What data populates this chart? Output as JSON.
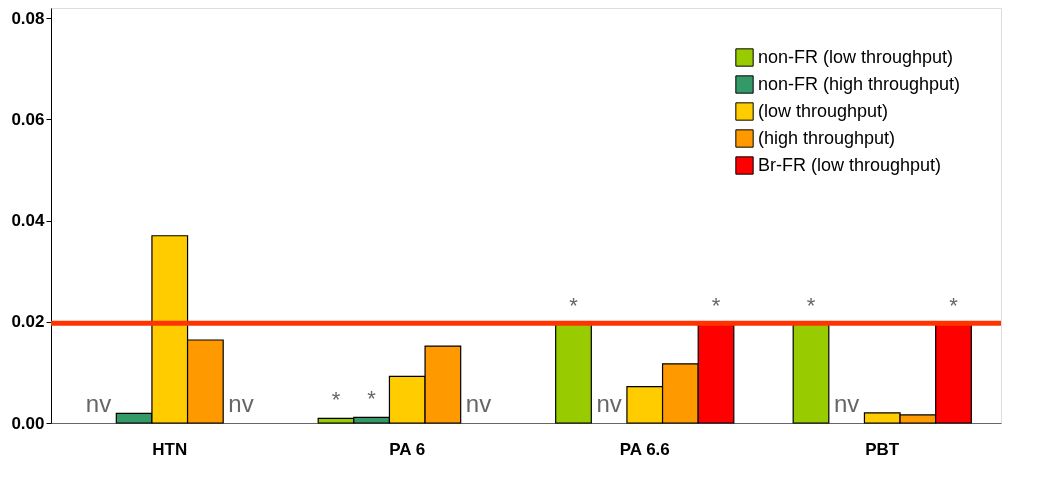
{
  "chart_data": {
    "type": "bar",
    "categories": [
      "HTN",
      "PA 6",
      "PA 6.6",
      "PBT"
    ],
    "series": [
      {
        "name": "non-FR (low throughput)",
        "color": "#99cc00",
        "values": [
          null,
          0.0009,
          0.0195,
          0.0195
        ],
        "value_labels": [
          "nv",
          "*",
          "*",
          "*"
        ]
      },
      {
        "name": "non-FR (high throughput)",
        "color": "#339966",
        "values": [
          0.0019,
          0.0011,
          null,
          null
        ],
        "value_labels": [
          null,
          "*",
          "nv",
          "nv"
        ]
      },
      {
        "name": "(low throughput)",
        "color": "#ffcc00",
        "values": [
          0.037,
          0.0092,
          0.0072,
          0.002
        ],
        "value_labels": [
          null,
          null,
          null,
          null
        ]
      },
      {
        "name": "(high throughput)",
        "color": "#ff9900",
        "values": [
          0.0164,
          0.0152,
          0.0117,
          0.0016
        ],
        "value_labels": [
          null,
          null,
          null,
          null
        ]
      },
      {
        "name": "Br-FR (low throughput)",
        "color": "#ff0000",
        "values": [
          null,
          null,
          0.0195,
          0.0195
        ],
        "value_labels": [
          "nv",
          "nv",
          "*",
          "*"
        ]
      }
    ],
    "ylim": [
      0,
      0.082
    ],
    "yticks": [
      {
        "value": 0,
        "label": "0.00"
      },
      {
        "value": 0.02,
        "label": "0.02"
      },
      {
        "value": 0.04,
        "label": "0.04"
      },
      {
        "value": 0.06,
        "label": "0.06"
      },
      {
        "value": 0.08,
        "label": "0.08"
      }
    ],
    "ref_lines": [
      {
        "axis": "y",
        "value": 0.0197,
        "color": "#ff3300"
      }
    ],
    "grid": false,
    "legend": "top right"
  }
}
